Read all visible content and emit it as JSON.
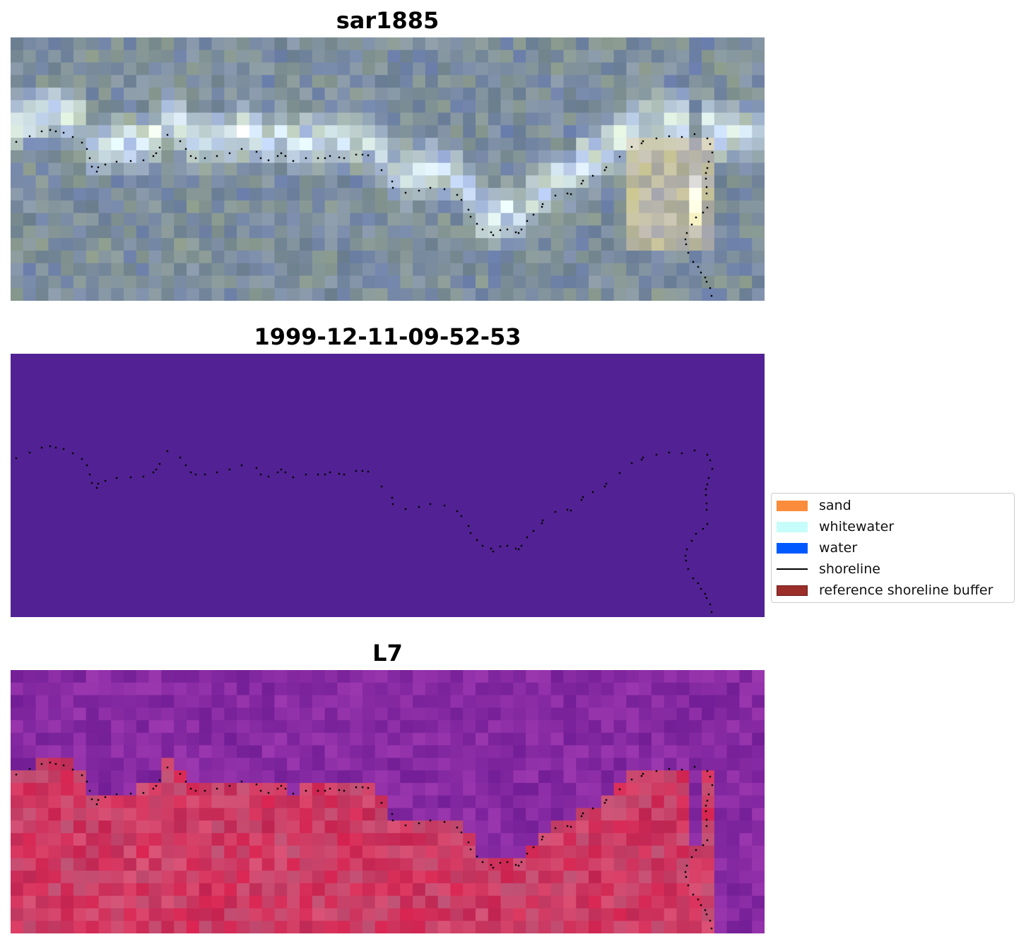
{
  "panels": [
    {
      "title": "sar1885",
      "layer": "rgb-image"
    },
    {
      "title": "1999-12-11-09-52-53",
      "layer": "classified-image"
    },
    {
      "title": "L7",
      "layer": "mndwi-image"
    }
  ],
  "legend": {
    "items": [
      {
        "label": "sand",
        "color": "#fb8c3c",
        "kind": "patch"
      },
      {
        "label": "whitewater",
        "color": "#c6fdfa",
        "kind": "patch"
      },
      {
        "label": "water",
        "color": "#0059fe",
        "kind": "patch"
      },
      {
        "label": "shoreline",
        "color": "#000000",
        "kind": "line"
      },
      {
        "label": "reference shoreline buffer",
        "color": "#9c2e2a",
        "kind": "patch"
      }
    ]
  },
  "colors": {
    "classified_background": "#522294",
    "shoreline_points": "#000000"
  }
}
